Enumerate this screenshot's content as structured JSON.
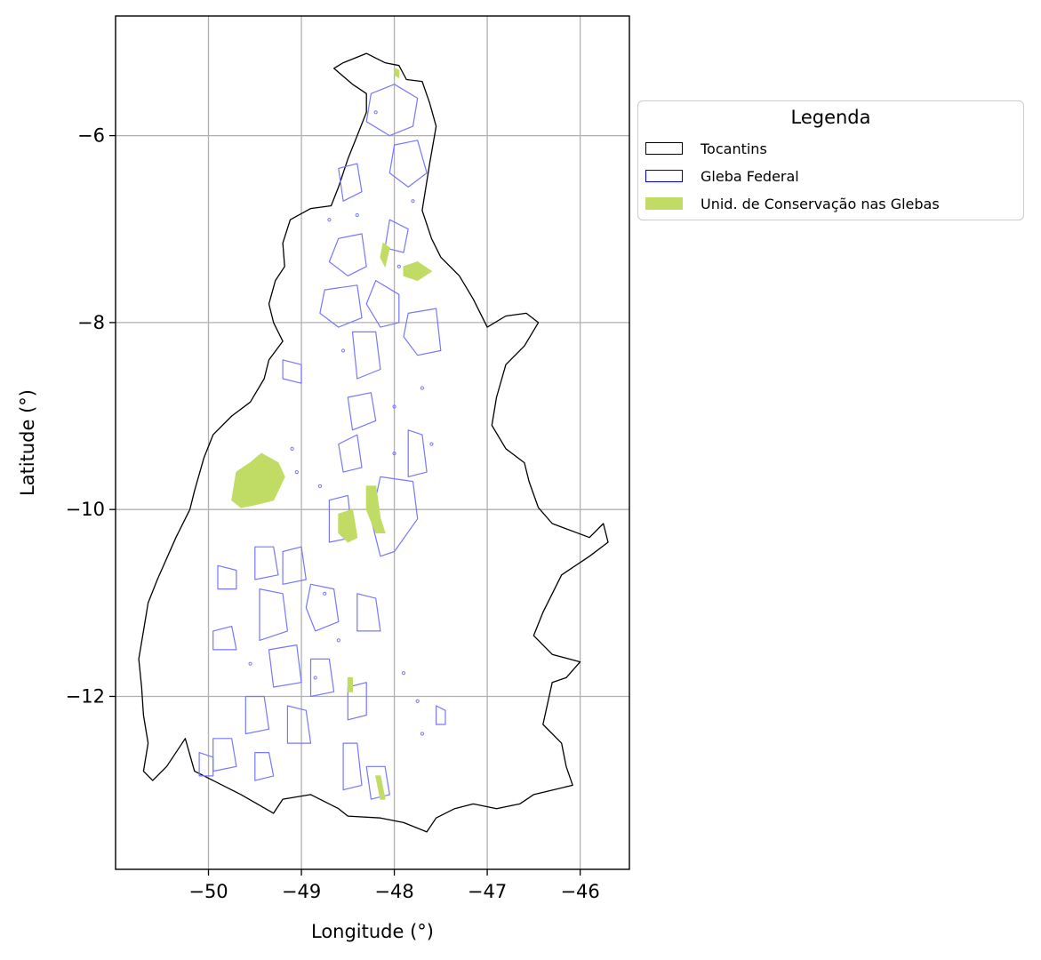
{
  "chart_data": {
    "type": "map",
    "region": "Tocantins",
    "xlabel": "Longitude (°)",
    "ylabel": "Latitude (°)",
    "xlim": [
      -51.0,
      -45.47
    ],
    "ylim": [
      -13.85,
      -4.72
    ],
    "xticks": [
      -50,
      -49,
      -48,
      -47,
      -46
    ],
    "yticks": [
      -6,
      -8,
      -10,
      -12
    ],
    "xtick_labels": [
      "−50",
      "−49",
      "−48",
      "−47",
      "−46"
    ],
    "ytick_labels": [
      "−6",
      "−8",
      "−10",
      "−12"
    ],
    "grid": true,
    "legend": {
      "title": "Legenda",
      "placement": "outside right, upper",
      "entries": [
        {
          "label": "Tocantins",
          "style": "outline",
          "color": "#000000"
        },
        {
          "label": "Gleba Federal",
          "style": "outline",
          "color": "#0000cc"
        },
        {
          "label": "Unid. de Conservação nas Glebas",
          "style": "fill",
          "color": "#c0dc64"
        }
      ]
    },
    "colors": {
      "state_outline": "#000000",
      "gleba_outline": "#7777ff",
      "uc_fill": "#c0dc64",
      "grid": "#b0b0b0"
    },
    "state_boundary": [
      [
        -48.65,
        -5.28
      ],
      [
        -48.55,
        -5.22
      ],
      [
        -48.3,
        -5.12
      ],
      [
        -48.1,
        -5.22
      ],
      [
        -47.95,
        -5.25
      ],
      [
        -47.87,
        -5.4
      ],
      [
        -47.7,
        -5.42
      ],
      [
        -47.62,
        -5.65
      ],
      [
        -47.55,
        -5.9
      ],
      [
        -47.62,
        -6.3
      ],
      [
        -47.7,
        -6.8
      ],
      [
        -47.6,
        -7.1
      ],
      [
        -47.5,
        -7.3
      ],
      [
        -47.3,
        -7.5
      ],
      [
        -47.15,
        -7.75
      ],
      [
        -47.0,
        -8.05
      ],
      [
        -46.8,
        -7.93
      ],
      [
        -46.58,
        -7.9
      ],
      [
        -46.45,
        -8.0
      ],
      [
        -46.6,
        -8.25
      ],
      [
        -46.8,
        -8.45
      ],
      [
        -46.9,
        -8.8
      ],
      [
        -46.95,
        -9.1
      ],
      [
        -46.8,
        -9.35
      ],
      [
        -46.6,
        -9.5
      ],
      [
        -46.55,
        -9.7
      ],
      [
        -46.45,
        -9.98
      ],
      [
        -46.3,
        -10.15
      ],
      [
        -45.9,
        -10.3
      ],
      [
        -45.75,
        -10.15
      ],
      [
        -45.7,
        -10.35
      ],
      [
        -45.9,
        -10.5
      ],
      [
        -46.2,
        -10.7
      ],
      [
        -46.4,
        -11.1
      ],
      [
        -46.5,
        -11.35
      ],
      [
        -46.3,
        -11.55
      ],
      [
        -46.0,
        -11.63
      ],
      [
        -46.15,
        -11.8
      ],
      [
        -46.3,
        -11.85
      ],
      [
        -46.4,
        -12.3
      ],
      [
        -46.2,
        -12.5
      ],
      [
        -46.15,
        -12.75
      ],
      [
        -46.08,
        -12.95
      ],
      [
        -46.5,
        -13.05
      ],
      [
        -46.65,
        -13.15
      ],
      [
        -46.9,
        -13.2
      ],
      [
        -47.15,
        -13.15
      ],
      [
        -47.35,
        -13.2
      ],
      [
        -47.55,
        -13.3
      ],
      [
        -47.65,
        -13.45
      ],
      [
        -47.9,
        -13.35
      ],
      [
        -48.15,
        -13.3
      ],
      [
        -48.5,
        -13.28
      ],
      [
        -48.6,
        -13.2
      ],
      [
        -48.9,
        -13.05
      ],
      [
        -49.2,
        -13.1
      ],
      [
        -49.3,
        -13.25
      ],
      [
        -49.65,
        -13.05
      ],
      [
        -49.95,
        -12.9
      ],
      [
        -50.15,
        -12.8
      ],
      [
        -50.25,
        -12.45
      ],
      [
        -50.45,
        -12.75
      ],
      [
        -50.6,
        -12.9
      ],
      [
        -50.7,
        -12.8
      ],
      [
        -50.65,
        -12.5
      ],
      [
        -50.7,
        -12.2
      ],
      [
        -50.72,
        -11.9
      ],
      [
        -50.75,
        -11.6
      ],
      [
        -50.7,
        -11.3
      ],
      [
        -50.65,
        -11.0
      ],
      [
        -50.55,
        -10.75
      ],
      [
        -50.35,
        -10.3
      ],
      [
        -50.2,
        -10.0
      ],
      [
        -50.15,
        -9.8
      ],
      [
        -50.05,
        -9.45
      ],
      [
        -49.95,
        -9.2
      ],
      [
        -49.75,
        -9.0
      ],
      [
        -49.55,
        -8.85
      ],
      [
        -49.4,
        -8.6
      ],
      [
        -49.35,
        -8.4
      ],
      [
        -49.2,
        -8.2
      ],
      [
        -49.3,
        -8.0
      ],
      [
        -49.35,
        -7.8
      ],
      [
        -49.28,
        -7.55
      ],
      [
        -49.18,
        -7.4
      ],
      [
        -49.2,
        -7.15
      ],
      [
        -49.12,
        -6.9
      ],
      [
        -48.9,
        -6.78
      ],
      [
        -48.68,
        -6.75
      ],
      [
        -48.6,
        -6.55
      ],
      [
        -48.5,
        -6.25
      ],
      [
        -48.4,
        -6.0
      ],
      [
        -48.3,
        -5.75
      ],
      [
        -48.3,
        -5.55
      ],
      [
        -48.45,
        -5.45
      ],
      [
        -48.65,
        -5.28
      ]
    ],
    "gleba_federal": [
      [
        [
          -48.25,
          -5.55
        ],
        [
          -48.0,
          -5.45
        ],
        [
          -47.75,
          -5.6
        ],
        [
          -47.8,
          -5.9
        ],
        [
          -48.05,
          -6.0
        ],
        [
          -48.3,
          -5.85
        ]
      ],
      [
        [
          -48.0,
          -6.1
        ],
        [
          -47.75,
          -6.05
        ],
        [
          -47.65,
          -6.4
        ],
        [
          -47.85,
          -6.55
        ],
        [
          -48.05,
          -6.4
        ]
      ],
      [
        [
          -48.6,
          -6.35
        ],
        [
          -48.4,
          -6.3
        ],
        [
          -48.35,
          -6.6
        ],
        [
          -48.55,
          -6.7
        ]
      ],
      [
        [
          -48.05,
          -6.9
        ],
        [
          -47.85,
          -7.0
        ],
        [
          -47.9,
          -7.25
        ],
        [
          -48.1,
          -7.2
        ]
      ],
      [
        [
          -48.6,
          -7.1
        ],
        [
          -48.35,
          -7.05
        ],
        [
          -48.3,
          -7.4
        ],
        [
          -48.5,
          -7.5
        ],
        [
          -48.7,
          -7.35
        ]
      ],
      [
        [
          -48.75,
          -7.65
        ],
        [
          -48.4,
          -7.6
        ],
        [
          -48.35,
          -7.95
        ],
        [
          -48.6,
          -8.05
        ],
        [
          -48.8,
          -7.9
        ]
      ],
      [
        [
          -48.2,
          -7.55
        ],
        [
          -47.95,
          -7.7
        ],
        [
          -47.95,
          -8.0
        ],
        [
          -48.15,
          -8.05
        ],
        [
          -48.3,
          -7.8
        ]
      ],
      [
        [
          -47.85,
          -7.9
        ],
        [
          -47.55,
          -7.85
        ],
        [
          -47.5,
          -8.3
        ],
        [
          -47.75,
          -8.35
        ],
        [
          -47.9,
          -8.15
        ]
      ],
      [
        [
          -48.45,
          -8.1
        ],
        [
          -48.2,
          -8.1
        ],
        [
          -48.15,
          -8.5
        ],
        [
          -48.4,
          -8.6
        ]
      ],
      [
        [
          -48.5,
          -8.8
        ],
        [
          -48.25,
          -8.75
        ],
        [
          -48.2,
          -9.05
        ],
        [
          -48.45,
          -9.15
        ]
      ],
      [
        [
          -49.2,
          -8.4
        ],
        [
          -49.0,
          -8.45
        ],
        [
          -49.0,
          -8.65
        ],
        [
          -49.2,
          -8.6
        ]
      ],
      [
        [
          -48.6,
          -9.3
        ],
        [
          -48.4,
          -9.2
        ],
        [
          -48.35,
          -9.55
        ],
        [
          -48.55,
          -9.6
        ]
      ],
      [
        [
          -47.85,
          -9.15
        ],
        [
          -47.7,
          -9.2
        ],
        [
          -47.65,
          -9.6
        ],
        [
          -47.85,
          -9.65
        ]
      ],
      [
        [
          -48.15,
          -9.65
        ],
        [
          -47.8,
          -9.7
        ],
        [
          -47.75,
          -10.1
        ],
        [
          -48.0,
          -10.45
        ],
        [
          -48.15,
          -10.5
        ],
        [
          -48.25,
          -10.1
        ]
      ],
      [
        [
          -48.7,
          -9.9
        ],
        [
          -48.5,
          -9.85
        ],
        [
          -48.45,
          -10.3
        ],
        [
          -48.7,
          -10.35
        ]
      ],
      [
        [
          -49.2,
          -10.45
        ],
        [
          -49.0,
          -10.4
        ],
        [
          -48.95,
          -10.75
        ],
        [
          -49.2,
          -10.8
        ]
      ],
      [
        [
          -49.5,
          -10.4
        ],
        [
          -49.3,
          -10.4
        ],
        [
          -49.25,
          -10.7
        ],
        [
          -49.5,
          -10.75
        ]
      ],
      [
        [
          -48.9,
          -10.8
        ],
        [
          -48.65,
          -10.85
        ],
        [
          -48.6,
          -11.2
        ],
        [
          -48.85,
          -11.3
        ],
        [
          -48.95,
          -11.05
        ]
      ],
      [
        [
          -49.45,
          -10.85
        ],
        [
          -49.2,
          -10.9
        ],
        [
          -49.15,
          -11.3
        ],
        [
          -49.45,
          -11.4
        ]
      ],
      [
        [
          -48.4,
          -10.9
        ],
        [
          -48.2,
          -10.95
        ],
        [
          -48.15,
          -11.3
        ],
        [
          -48.4,
          -11.3
        ]
      ],
      [
        [
          -49.9,
          -10.6
        ],
        [
          -49.7,
          -10.65
        ],
        [
          -49.7,
          -10.85
        ],
        [
          -49.9,
          -10.85
        ]
      ],
      [
        [
          -49.95,
          -11.3
        ],
        [
          -49.75,
          -11.25
        ],
        [
          -49.7,
          -11.5
        ],
        [
          -49.95,
          -11.5
        ]
      ],
      [
        [
          -49.35,
          -11.5
        ],
        [
          -49.05,
          -11.45
        ],
        [
          -49.0,
          -11.85
        ],
        [
          -49.3,
          -11.9
        ]
      ],
      [
        [
          -48.9,
          -11.6
        ],
        [
          -48.7,
          -11.6
        ],
        [
          -48.65,
          -11.95
        ],
        [
          -48.9,
          -12.0
        ]
      ],
      [
        [
          -48.5,
          -11.9
        ],
        [
          -48.3,
          -11.85
        ],
        [
          -48.3,
          -12.2
        ],
        [
          -48.5,
          -12.25
        ]
      ],
      [
        [
          -49.6,
          -12.0
        ],
        [
          -49.4,
          -12.0
        ],
        [
          -49.35,
          -12.35
        ],
        [
          -49.6,
          -12.4
        ]
      ],
      [
        [
          -49.15,
          -12.1
        ],
        [
          -48.95,
          -12.15
        ],
        [
          -48.9,
          -12.5
        ],
        [
          -49.15,
          -12.5
        ]
      ],
      [
        [
          -49.95,
          -12.45
        ],
        [
          -49.75,
          -12.45
        ],
        [
          -49.7,
          -12.75
        ],
        [
          -49.95,
          -12.8
        ]
      ],
      [
        [
          -50.1,
          -12.6
        ],
        [
          -49.95,
          -12.65
        ],
        [
          -49.95,
          -12.85
        ],
        [
          -50.1,
          -12.85
        ]
      ],
      [
        [
          -48.55,
          -12.5
        ],
        [
          -48.4,
          -12.5
        ],
        [
          -48.35,
          -12.95
        ],
        [
          -48.55,
          -13.0
        ]
      ],
      [
        [
          -48.3,
          -12.75
        ],
        [
          -48.1,
          -12.75
        ],
        [
          -48.05,
          -13.05
        ],
        [
          -48.25,
          -13.1
        ]
      ],
      [
        [
          -49.5,
          -12.6
        ],
        [
          -49.35,
          -12.6
        ],
        [
          -49.3,
          -12.85
        ],
        [
          -49.5,
          -12.9
        ]
      ],
      [
        [
          -47.55,
          -12.1
        ],
        [
          -47.45,
          -12.15
        ],
        [
          -47.45,
          -12.3
        ],
        [
          -47.55,
          -12.3
        ]
      ]
    ],
    "gleba_dots": [
      [
        -48.2,
        -5.75
      ],
      [
        -47.8,
        -6.7
      ],
      [
        -48.7,
        -6.9
      ],
      [
        -48.55,
        -8.3
      ],
      [
        -47.7,
        -8.7
      ],
      [
        -48.0,
        -8.9
      ],
      [
        -49.1,
        -9.35
      ],
      [
        -49.05,
        -9.6
      ],
      [
        -48.8,
        -9.75
      ],
      [
        -47.9,
        -11.75
      ],
      [
        -47.75,
        -12.05
      ],
      [
        -48.6,
        -11.4
      ],
      [
        -49.55,
        -11.65
      ],
      [
        -48.0,
        -9.4
      ],
      [
        -47.6,
        -9.3
      ],
      [
        -48.75,
        -10.9
      ],
      [
        -47.7,
        -12.4
      ],
      [
        -48.4,
        -6.85
      ],
      [
        -47.95,
        -7.4
      ],
      [
        -48.85,
        -11.8
      ]
    ],
    "unidades_conservacao": [
      [
        [
          -49.43,
          -9.4
        ],
        [
          -49.25,
          -9.5
        ],
        [
          -49.18,
          -9.65
        ],
        [
          -49.3,
          -9.9
        ],
        [
          -49.5,
          -9.95
        ],
        [
          -49.65,
          -9.98
        ],
        [
          -49.75,
          -9.9
        ],
        [
          -49.7,
          -9.6
        ],
        [
          -49.55,
          -9.5
        ]
      ],
      [
        [
          -48.6,
          -10.05
        ],
        [
          -48.45,
          -10.0
        ],
        [
          -48.4,
          -10.3
        ],
        [
          -48.5,
          -10.35
        ],
        [
          -48.6,
          -10.25
        ]
      ],
      [
        [
          -48.3,
          -9.75
        ],
        [
          -48.2,
          -9.75
        ],
        [
          -48.15,
          -10.1
        ],
        [
          -48.1,
          -10.25
        ],
        [
          -48.2,
          -10.25
        ],
        [
          -48.3,
          -10.0
        ]
      ],
      [
        [
          -47.9,
          -7.4
        ],
        [
          -47.75,
          -7.35
        ],
        [
          -47.6,
          -7.45
        ],
        [
          -47.75,
          -7.55
        ],
        [
          -47.9,
          -7.5
        ]
      ],
      [
        [
          -48.12,
          -7.15
        ],
        [
          -48.05,
          -7.2
        ],
        [
          -48.1,
          -7.4
        ],
        [
          -48.15,
          -7.3
        ]
      ],
      [
        [
          -48.5,
          -11.8
        ],
        [
          -48.45,
          -11.8
        ],
        [
          -48.45,
          -11.95
        ],
        [
          -48.5,
          -11.95
        ]
      ],
      [
        [
          -48.2,
          -12.85
        ],
        [
          -48.15,
          -12.85
        ],
        [
          -48.1,
          -13.1
        ],
        [
          -48.15,
          -13.1
        ]
      ],
      [
        [
          -48.0,
          -5.28
        ],
        [
          -47.95,
          -5.3
        ],
        [
          -47.95,
          -5.38
        ],
        [
          -48.0,
          -5.35
        ]
      ]
    ]
  }
}
